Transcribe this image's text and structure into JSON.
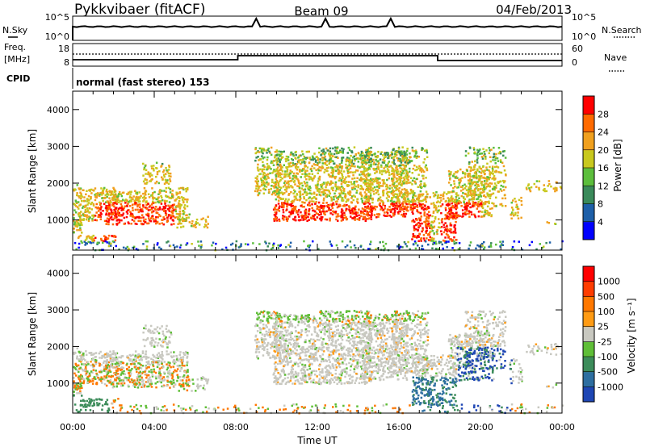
{
  "header": {
    "station": "Pykkvibaer (fitACF)",
    "beam": "Beam 09",
    "date": "04/Feb/2013"
  },
  "top_panels": {
    "nsky_label": "N.Sky",
    "nsearch_label": "N.Search",
    "nsky_ticks": [
      "10^5",
      "10^0"
    ],
    "nsky_right_ticks": [
      "10^5",
      "10^0"
    ],
    "freq_label_1": "Freq.",
    "freq_label_2": "[MHz]",
    "freq_ticks": [
      "18",
      "8"
    ],
    "nave_label": "Nave",
    "nave_ticks": [
      "60",
      "0"
    ],
    "cpid_label": "CPID",
    "cpid_text": "normal (fast stereo) 153"
  },
  "chart_data": [
    {
      "type": "heatmap",
      "title": "",
      "xlabel": "",
      "ylabel": "Slant Range [km]",
      "ylim": [
        180,
        4500
      ],
      "xlim_hours": [
        0,
        24
      ],
      "yticks": [
        "1000",
        "2000",
        "3000",
        "4000"
      ],
      "colorbar": {
        "label": "Power [dB]",
        "ticks": [
          "4",
          "8",
          "12",
          "16",
          "20",
          "24",
          "28"
        ],
        "colors": [
          "#0000ff",
          "#1e5fa8",
          "#3a8a5a",
          "#5cbe3c",
          "#c8c81e",
          "#f0a01e",
          "#ff6a00",
          "#ff0000"
        ]
      }
    },
    {
      "type": "heatmap",
      "title": "",
      "xlabel": "Time UT",
      "ylabel": "Slant Range [km]",
      "ylim": [
        180,
        4500
      ],
      "xlim_hours": [
        0,
        24
      ],
      "yticks": [
        "1000",
        "2000",
        "3000",
        "4000"
      ],
      "xticks": [
        "00:00",
        "04:00",
        "08:00",
        "12:00",
        "16:00",
        "20:00",
        "00:00"
      ],
      "colorbar": {
        "label": "Velocity [m s⁻¹]",
        "ticks": [
          "1000",
          "500",
          "100",
          "25",
          "-25",
          "-100",
          "-500",
          "-1000"
        ],
        "colors": [
          "#1e46b4",
          "#2d6ea0",
          "#3c8c5a",
          "#5fbe37",
          "#c8c8c0",
          "#ff9b14",
          "#ff7800",
          "#ff3c00",
          "#ff0000"
        ]
      }
    }
  ]
}
